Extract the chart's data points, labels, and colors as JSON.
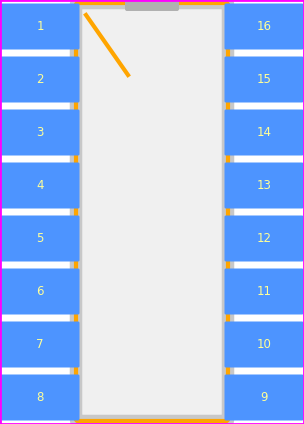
{
  "background_color": "#ffffff",
  "border_color": "#ff00ff",
  "ic_body_gray": "#c8c8c8",
  "ic_outline_color": "#ffa500",
  "pin_color": "#4d94ff",
  "pin_text_color": "#ffff99",
  "pin_font_size": 8.5,
  "fig_width": 3.04,
  "fig_height": 4.24,
  "dpi": 100,
  "left_pins": [
    1,
    2,
    3,
    4,
    5,
    6,
    7,
    8
  ],
  "right_pins": [
    16,
    15,
    14,
    13,
    12,
    11,
    10,
    9
  ],
  "body_inner_color": "#f0f0f0"
}
